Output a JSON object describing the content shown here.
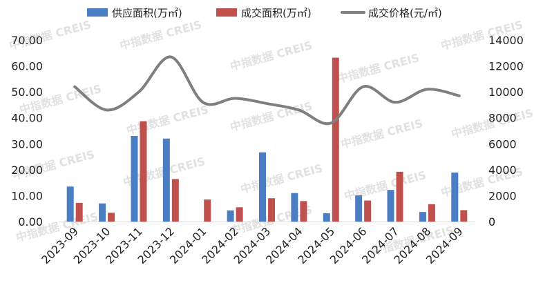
{
  "chart_data": {
    "type": "bar",
    "categories": [
      "2023-09",
      "2023-10",
      "2023-11",
      "2023-12",
      "2024-01",
      "2024-02",
      "2024-03",
      "2024-04",
      "2024-05",
      "2024-06",
      "2024-07",
      "2024-08",
      "2024-09"
    ],
    "series": [
      {
        "name": "供应面积(万㎡)",
        "type": "bar",
        "axis": "left",
        "color": "#4a7ec4",
        "values": [
          13.5,
          7.0,
          33.0,
          32.0,
          0,
          4.3,
          26.7,
          11.0,
          3.2,
          10.1,
          12.2,
          3.7,
          18.9
        ]
      },
      {
        "name": "成交面积(万㎡)",
        "type": "bar",
        "axis": "left",
        "color": "#c0504d",
        "values": [
          7.2,
          3.4,
          38.7,
          16.4,
          8.5,
          5.5,
          9.0,
          7.9,
          63.2,
          8.1,
          19.2,
          6.7,
          4.4
        ]
      },
      {
        "name": "成交价格(元/㎡)",
        "type": "line",
        "axis": "right",
        "color": "#7f7f7f",
        "values": [
          10400,
          8600,
          10000,
          12700,
          9200,
          9500,
          9100,
          8600,
          7600,
          10400,
          9200,
          10200,
          9700
        ]
      }
    ],
    "yLeft": {
      "min": 0,
      "max": 70,
      "step": 10,
      "ticks": [
        "0.00",
        "10.00",
        "20.00",
        "30.00",
        "40.00",
        "50.00",
        "60.00",
        "70.00"
      ]
    },
    "yRight": {
      "min": 0,
      "max": 14000,
      "step": 2000,
      "ticks": [
        "0",
        "2000",
        "4000",
        "6000",
        "8000",
        "10000",
        "12000",
        "14000"
      ]
    },
    "legend": {
      "position": "top"
    },
    "watermark": "中指数据 CREIS"
  }
}
